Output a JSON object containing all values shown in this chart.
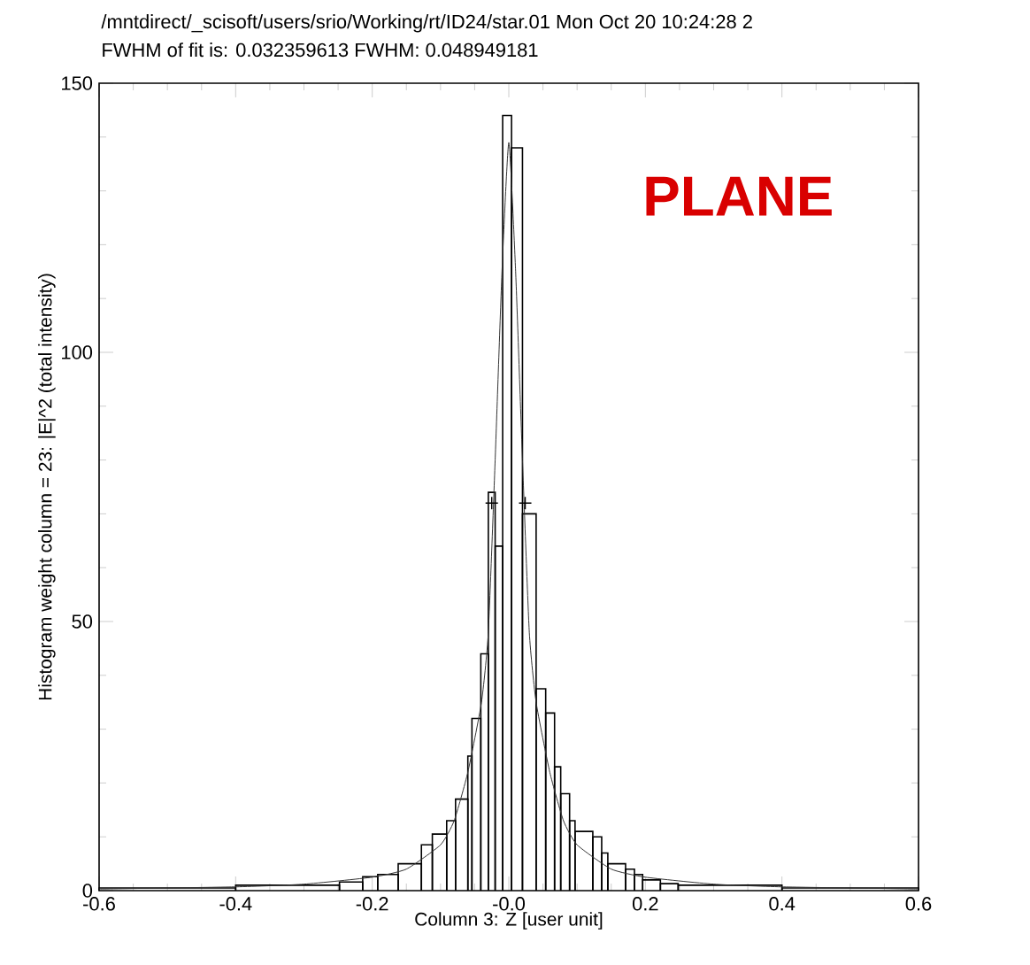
{
  "chart_data": {
    "type": "histogram",
    "title": "/mntdirect/_scisoft/users/srio/Working/rt/ID24/star.01  Mon Oct 20 10:24:28 2",
    "subtitle": "FWHM   of fit is: 0.032359613     FWHM: 0.048949181",
    "xlabel": "Column 3: Z [user unit]",
    "ylabel": "Histogram weight column = 23: |E|^2 (total intensity)",
    "annotations": [
      "PLANE"
    ],
    "bins": [
      -0.6,
      -0.4,
      -0.248,
      -0.214,
      -0.192,
      -0.162,
      -0.128,
      -0.112,
      -0.091,
      -0.078,
      -0.06,
      -0.054,
      -0.041,
      -0.03,
      -0.02,
      -0.009,
      0.004,
      0.02,
      0.04,
      0.054,
      0.067,
      0.076,
      0.089,
      0.097,
      0.123,
      0.136,
      0.145,
      0.171,
      0.184,
      0.196,
      0.222,
      0.248,
      0.4,
      0.6
    ],
    "values": [
      0.5,
      1,
      1.6,
      2.6,
      3,
      5,
      8.5,
      10.5,
      13,
      17,
      25,
      32,
      44,
      74,
      64,
      144,
      138,
      70,
      37.5,
      33,
      23,
      18,
      13,
      11,
      10,
      7,
      5,
      4,
      3,
      2,
      1.3,
      1,
      0.5
    ],
    "color": "#000000",
    "series": [
      {
        "type": "line",
        "color": "#333333",
        "x": [
          -0.6,
          -0.4,
          -0.3,
          -0.2,
          -0.15,
          -0.1,
          -0.08,
          -0.06,
          -0.04,
          -0.03,
          -0.02,
          -0.01,
          0,
          0.01,
          0.02,
          0.03,
          0.04,
          0.06,
          0.08,
          0.1,
          0.15,
          0.2,
          0.3,
          0.4,
          0.6
        ],
        "values": [
          0.3,
          0.7,
          1.2,
          2.5,
          4,
          8.5,
          13,
          22,
          35,
          48,
          80,
          115,
          139,
          115,
          80,
          48,
          35,
          22,
          13,
          8.5,
          4,
          2.5,
          1.2,
          0.7,
          0.3
        ]
      },
      {
        "type": "scatter",
        "marker": "cross",
        "color": "#000000",
        "x": [
          -0.025,
          0.024
        ],
        "values": [
          72,
          72
        ]
      }
    ],
    "xlim": [
      -0.6,
      0.6
    ],
    "xticks": [
      -0.6,
      -0.4,
      -0.2,
      {
        "value": 0,
        "label": "-0.0"
      },
      0.2,
      0.4,
      0.6
    ],
    "ylim": [
      0,
      150
    ],
    "yticks": [
      0,
      50,
      100,
      150
    ],
    "grid": false
  }
}
